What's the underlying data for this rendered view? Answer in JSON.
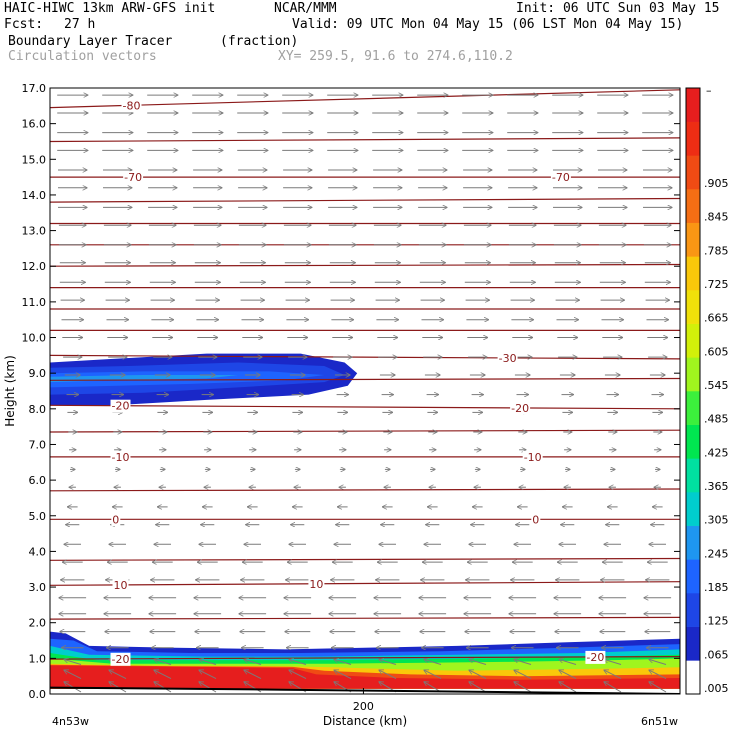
{
  "header": {
    "model": "HAIC-HIWC 13km ARW-GFS init",
    "org": "NCAR/MMM",
    "init": "Init: 06 UTC Sun 03 May 15",
    "fcst_label": "Fcst:",
    "fcst_value": "27 h",
    "valid": "Valid: 09 UTC Mon 04 May 15 (06 LST Mon 04 May 15)",
    "field": "Boundary Layer Tracer",
    "field_units": "(fraction)",
    "vectors": "Circulation vectors",
    "xy": "XY= 259.5, 91.6 to 274.6,110.2"
  },
  "chart_data": {
    "type": "heatmap",
    "title": "Boundary Layer Tracer",
    "units": "(fraction)",
    "xlabel": "Distance (km)",
    "ylabel": "Height (km)",
    "xlim": [
      0,
      402
    ],
    "ylim": [
      0,
      17
    ],
    "x_ticks": [
      {
        "value": 200,
        "label": "200"
      }
    ],
    "x_end_labels": {
      "left": "4n53w",
      "right": "6n51w"
    },
    "y_ticks": [
      0.0,
      1.0,
      2.0,
      3.0,
      4.0,
      5.0,
      6.0,
      7.0,
      8.0,
      9.0,
      10.0,
      11.0,
      12.0,
      13.0,
      14.0,
      15.0,
      16.0,
      17.0
    ],
    "y_tick_labels": [
      "0.0",
      "1.0",
      "2.0",
      "3.0",
      "4.0",
      "5.0",
      "6.0",
      "7.0",
      "8.0",
      "9.0",
      "10.0",
      "11.0",
      "12.0",
      "13.0",
      "14.0",
      "15.0",
      "16.0",
      "17.0"
    ],
    "colorbar": {
      "colors": [
        "#ffffff",
        "#1a28c8",
        "#1e46e6",
        "#1e64ff",
        "#1e96f0",
        "#00cdcd",
        "#00e0a0",
        "#00e650",
        "#3cf03c",
        "#a0f51e",
        "#d2f00a",
        "#f0e10a",
        "#fac80a",
        "#fa9614",
        "#f56e14",
        "#f04b14",
        "#ee2d14",
        "#e61e1e"
      ],
      "labels": [
        ".005",
        ".065",
        ".125",
        ".185",
        ".245",
        ".305",
        ".365",
        ".425",
        ".485",
        ".545",
        ".605",
        ".665",
        ".725",
        ".785",
        ".845",
        ".905",
        "",
        ""
      ],
      "top_label": "–"
    },
    "temperature_contours": [
      {
        "label": "10",
        "points": [
          [
            0,
            3.05
          ],
          [
            402,
            3.15
          ]
        ],
        "labels_at": [
          45,
          170
        ]
      },
      {
        "label": "-80",
        "points": [
          [
            0,
            16.45
          ],
          [
            402,
            16.95
          ]
        ],
        "labels_at": [
          52
        ]
      },
      {
        "label": "-70",
        "points": [
          [
            0,
            14.5
          ],
          [
            402,
            14.5
          ]
        ],
        "labels_at": [
          53,
          326
        ]
      },
      {
        "label": "-30",
        "points": [
          [
            0,
            9.5
          ],
          [
            402,
            9.4
          ]
        ],
        "labels_at": [
          292
        ]
      },
      {
        "label": "-20",
        "points": [
          [
            0,
            8.1
          ],
          [
            402,
            8.0
          ]
        ],
        "labels_at": [
          45,
          300
        ]
      },
      {
        "label": "-10",
        "points": [
          [
            0,
            6.65
          ],
          [
            402,
            6.65
          ]
        ],
        "labels_at": [
          45,
          308
        ]
      },
      {
        "label": "0",
        "points": [
          [
            0,
            4.9
          ],
          [
            402,
            4.9
          ]
        ],
        "labels_at": [
          42,
          310
        ]
      },
      {
        "label": "-20",
        "points": [
          [
            0,
            0.98
          ],
          [
            402,
            1.05
          ]
        ],
        "labels_at": [
          45,
          348
        ]
      },
      {
        "label": "",
        "points": [
          [
            0,
            2.1
          ],
          [
            402,
            2.15
          ]
        ]
      },
      {
        "label": "",
        "points": [
          [
            0,
            3.75
          ],
          [
            402,
            3.8
          ]
        ]
      },
      {
        "label": "",
        "points": [
          [
            0,
            5.7
          ],
          [
            402,
            5.75
          ]
        ]
      },
      {
        "label": "",
        "points": [
          [
            0,
            7.35
          ],
          [
            402,
            7.4
          ]
        ]
      },
      {
        "label": "",
        "points": [
          [
            0,
            8.8
          ],
          [
            402,
            8.85
          ]
        ]
      },
      {
        "label": "",
        "points": [
          [
            0,
            10.2
          ],
          [
            402,
            10.2
          ]
        ]
      },
      {
        "label": "",
        "points": [
          [
            0,
            10.8
          ],
          [
            402,
            10.8
          ]
        ]
      },
      {
        "label": "",
        "points": [
          [
            0,
            11.4
          ],
          [
            402,
            11.4
          ]
        ]
      },
      {
        "label": "",
        "points": [
          [
            0,
            12.0
          ],
          [
            402,
            12.05
          ]
        ]
      },
      {
        "label": "",
        "points": [
          [
            0,
            12.6
          ],
          [
            402,
            12.6
          ]
        ]
      },
      {
        "label": "",
        "points": [
          [
            0,
            13.2
          ],
          [
            402,
            13.2
          ]
        ]
      },
      {
        "label": "",
        "points": [
          [
            0,
            13.8
          ],
          [
            402,
            13.9
          ]
        ]
      },
      {
        "label": "",
        "points": [
          [
            0,
            15.5
          ],
          [
            402,
            15.6
          ]
        ]
      }
    ],
    "vector_rows": [
      {
        "z": 0.2,
        "u": -1.0,
        "w": 0.6
      },
      {
        "z": 0.55,
        "u": -1.0,
        "w": 0.5
      },
      {
        "z": 0.9,
        "u": -1.0,
        "w": 0.3
      },
      {
        "z": 1.3,
        "u": -1.3,
        "w": 0.0
      },
      {
        "z": 1.75,
        "u": -1.5,
        "w": 0.0
      },
      {
        "z": 2.25,
        "u": -1.6,
        "w": 0.0
      },
      {
        "z": 2.7,
        "u": -1.6,
        "w": 0.0
      },
      {
        "z": 3.2,
        "u": -1.4,
        "w": 0.0
      },
      {
        "z": 3.7,
        "u": -1.2,
        "w": 0.0
      },
      {
        "z": 4.2,
        "u": -1.0,
        "w": 0.0
      },
      {
        "z": 4.75,
        "u": -0.8,
        "w": 0.0
      },
      {
        "z": 5.25,
        "u": -0.6,
        "w": 0.0
      },
      {
        "z": 5.8,
        "u": -0.4,
        "w": 0.0
      },
      {
        "z": 6.3,
        "u": 0.3,
        "w": 0.0
      },
      {
        "z": 6.85,
        "u": 0.4,
        "w": 0.0
      },
      {
        "z": 7.35,
        "u": 0.5,
        "w": 0.0
      },
      {
        "z": 7.9,
        "u": 0.6,
        "w": 0.0
      },
      {
        "z": 8.4,
        "u": 0.7,
        "w": 0.0
      },
      {
        "z": 8.95,
        "u": 0.9,
        "w": 0.0
      },
      {
        "z": 9.45,
        "u": 1.1,
        "w": 0.0
      },
      {
        "z": 10.0,
        "u": 1.2,
        "w": 0.0
      },
      {
        "z": 10.5,
        "u": 1.3,
        "w": 0.0
      },
      {
        "z": 11.05,
        "u": 1.4,
        "w": 0.0
      },
      {
        "z": 11.55,
        "u": 1.5,
        "w": 0.0
      },
      {
        "z": 12.1,
        "u": 1.5,
        "w": 0.0
      },
      {
        "z": 12.6,
        "u": 1.6,
        "w": 0.0
      },
      {
        "z": 13.15,
        "u": 1.6,
        "w": 0.0
      },
      {
        "z": 13.65,
        "u": 1.7,
        "w": 0.0
      },
      {
        "z": 14.2,
        "u": 1.7,
        "w": 0.0
      },
      {
        "z": 14.7,
        "u": 1.7,
        "w": 0.0
      },
      {
        "z": 15.25,
        "u": 1.8,
        "w": 0.0
      },
      {
        "z": 15.75,
        "u": 1.8,
        "w": 0.0
      },
      {
        "z": 16.3,
        "u": 1.8,
        "w": 0.0
      },
      {
        "z": 16.8,
        "u": 1.8,
        "w": 0.0
      }
    ],
    "tracer_shapes": [
      {
        "color": "#1a28c8",
        "points": [
          [
            0,
            9.3
          ],
          [
            40,
            9.4
          ],
          [
            100,
            9.55
          ],
          [
            160,
            9.55
          ],
          [
            188,
            9.3
          ],
          [
            196,
            9.0
          ],
          [
            190,
            8.65
          ],
          [
            165,
            8.4
          ],
          [
            100,
            8.25
          ],
          [
            40,
            8.1
          ],
          [
            0,
            8.1
          ]
        ]
      },
      {
        "color": "#1e46e6",
        "points": [
          [
            0,
            9.15
          ],
          [
            50,
            9.2
          ],
          [
            120,
            9.3
          ],
          [
            175,
            9.2
          ],
          [
            188,
            8.95
          ],
          [
            175,
            8.75
          ],
          [
            120,
            8.6
          ],
          [
            60,
            8.45
          ],
          [
            0,
            8.4
          ]
        ]
      },
      {
        "color": "#1e64ff",
        "points": [
          [
            0,
            9.0
          ],
          [
            60,
            9.05
          ],
          [
            140,
            9.05
          ],
          [
            175,
            8.95
          ],
          [
            150,
            8.8
          ],
          [
            90,
            8.7
          ],
          [
            0,
            8.6
          ]
        ]
      },
      {
        "color": "#1e96f0",
        "points": [
          [
            0,
            8.9
          ],
          [
            60,
            8.95
          ],
          [
            120,
            8.95
          ],
          [
            100,
            8.85
          ],
          [
            40,
            8.8
          ],
          [
            0,
            8.75
          ]
        ]
      },
      {
        "color": "#1a28c8",
        "points": [
          [
            0,
            1.75
          ],
          [
            10,
            1.7
          ],
          [
            25,
            1.35
          ],
          [
            80,
            1.3
          ],
          [
            150,
            1.25
          ],
          [
            260,
            1.35
          ],
          [
            330,
            1.45
          ],
          [
            402,
            1.55
          ],
          [
            402,
            0.15
          ],
          [
            0,
            0.15
          ]
        ]
      },
      {
        "color": "#1e64ff",
        "points": [
          [
            0,
            1.55
          ],
          [
            15,
            1.5
          ],
          [
            30,
            1.2
          ],
          [
            90,
            1.15
          ],
          [
            160,
            1.15
          ],
          [
            250,
            1.2
          ],
          [
            330,
            1.3
          ],
          [
            402,
            1.4
          ],
          [
            402,
            0.15
          ],
          [
            0,
            0.15
          ]
        ]
      },
      {
        "color": "#00cdcd",
        "points": [
          [
            0,
            1.35
          ],
          [
            25,
            1.1
          ],
          [
            100,
            1.05
          ],
          [
            170,
            1.05
          ],
          [
            260,
            1.1
          ],
          [
            340,
            1.15
          ],
          [
            402,
            1.25
          ],
          [
            402,
            0.15
          ],
          [
            0,
            0.15
          ]
        ]
      },
      {
        "color": "#00e650",
        "points": [
          [
            0,
            1.15
          ],
          [
            30,
            0.95
          ],
          [
            120,
            0.95
          ],
          [
            180,
            0.95
          ],
          [
            280,
            1.0
          ],
          [
            350,
            1.05
          ],
          [
            402,
            1.1
          ],
          [
            402,
            0.15
          ],
          [
            0,
            0.15
          ]
        ]
      },
      {
        "color": "#a0f51e",
        "points": [
          [
            0,
            1.0
          ],
          [
            40,
            0.85
          ],
          [
            130,
            0.85
          ],
          [
            180,
            0.85
          ],
          [
            290,
            0.9
          ],
          [
            360,
            0.95
          ],
          [
            402,
            1.0
          ],
          [
            402,
            0.15
          ],
          [
            0,
            0.15
          ]
        ]
      },
      {
        "color": "#fac80a",
        "points": [
          [
            0,
            0.85
          ],
          [
            60,
            0.8
          ],
          [
            150,
            0.78
          ],
          [
            180,
            0.75
          ],
          [
            260,
            0.65
          ],
          [
            340,
            0.7
          ],
          [
            402,
            0.75
          ],
          [
            402,
            0.15
          ],
          [
            0,
            0.15
          ]
        ]
      },
      {
        "color": "#f04b14",
        "points": [
          [
            0,
            0.82
          ],
          [
            80,
            0.78
          ],
          [
            155,
            0.76
          ],
          [
            175,
            0.65
          ],
          [
            230,
            0.55
          ],
          [
            300,
            0.5
          ],
          [
            402,
            0.55
          ],
          [
            402,
            0.15
          ],
          [
            0,
            0.15
          ]
        ]
      },
      {
        "color": "#e61e1e",
        "points": [
          [
            0,
            0.8
          ],
          [
            100,
            0.76
          ],
          [
            155,
            0.72
          ],
          [
            170,
            0.55
          ],
          [
            220,
            0.45
          ],
          [
            300,
            0.4
          ],
          [
            402,
            0.45
          ],
          [
            402,
            0.15
          ],
          [
            0,
            0.15
          ]
        ]
      }
    ],
    "terrain": {
      "points": [
        [
          0,
          0.18
        ],
        [
          150,
          0.12
        ],
        [
          300,
          0.05
        ],
        [
          402,
          0.0
        ]
      ]
    }
  }
}
